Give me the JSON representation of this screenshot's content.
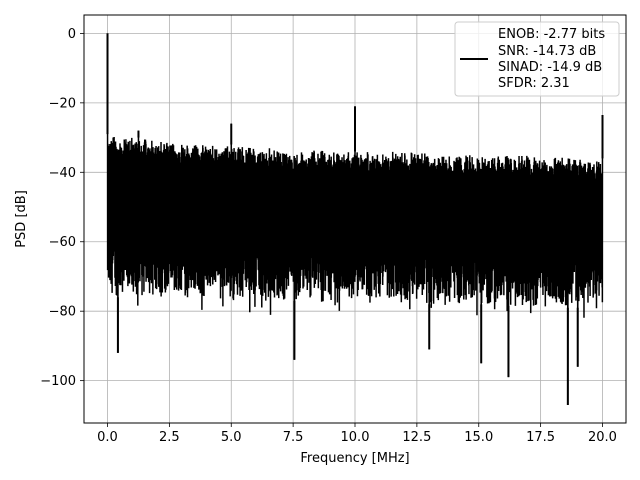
{
  "chart_data": {
    "type": "line",
    "xlabel": "Frequency [MHz]",
    "ylabel": "PSD [dB]",
    "xlim": [
      -0.95,
      20.95
    ],
    "ylim": [
      -112.2,
      5.3
    ],
    "grid": true,
    "x_ticks": [
      0.0,
      2.5,
      5.0,
      7.5,
      10.0,
      12.5,
      15.0,
      17.5,
      20.0
    ],
    "x_tick_labels": [
      "0.0",
      "2.5",
      "5.0",
      "7.5",
      "10.0",
      "12.5",
      "15.0",
      "17.5",
      "20.0"
    ],
    "y_ticks": [
      0,
      -20,
      -40,
      -60,
      -80,
      -100
    ],
    "y_tick_labels": [
      "0",
      "−20",
      "−40",
      "−60",
      "−80",
      "−100"
    ],
    "legend_position": "top-right",
    "legend_entries": [
      "ENOB: -2.77 bits",
      "SNR: -14.73 dB",
      "SINAD: -14.9 dB",
      "SFDR: 2.31"
    ],
    "series": [
      {
        "name": "ENOB: -2.77 bits\nSNR: -14.73 dB\nSINAD: -14.9 dB\nSFDR: 2.31",
        "color": "#000000",
        "x_range": [
          0,
          20
        ],
        "noise_ceiling": [
          [
            0.0,
            -29
          ],
          [
            2.5,
            -31
          ],
          [
            5.0,
            -32
          ],
          [
            7.5,
            -33
          ],
          [
            10.0,
            -34
          ],
          [
            12.5,
            -34
          ],
          [
            15.0,
            -35
          ],
          [
            17.5,
            -35
          ],
          [
            20.0,
            -36
          ]
        ],
        "noise_floor": [
          [
            0.0,
            -76
          ],
          [
            2.5,
            -76
          ],
          [
            5.0,
            -77
          ],
          [
            7.5,
            -77
          ],
          [
            10.0,
            -78
          ],
          [
            12.5,
            -78
          ],
          [
            15.0,
            -78
          ],
          [
            17.5,
            -79
          ],
          [
            20.0,
            -79
          ]
        ],
        "spurs": [
          {
            "x": 0.0,
            "y": 0.0
          },
          {
            "x": 1.25,
            "y": -28
          },
          {
            "x": 5.0,
            "y": -26
          },
          {
            "x": 10.0,
            "y": -21
          },
          {
            "x": 20.0,
            "y": -23.5
          }
        ],
        "dips": [
          {
            "x": 0.42,
            "y": -92
          },
          {
            "x": 7.55,
            "y": -94
          },
          {
            "x": 13.0,
            "y": -91
          },
          {
            "x": 15.1,
            "y": -95
          },
          {
            "x": 16.2,
            "y": -99
          },
          {
            "x": 18.6,
            "y": -107
          },
          {
            "x": 19.0,
            "y": -96
          }
        ]
      }
    ]
  }
}
